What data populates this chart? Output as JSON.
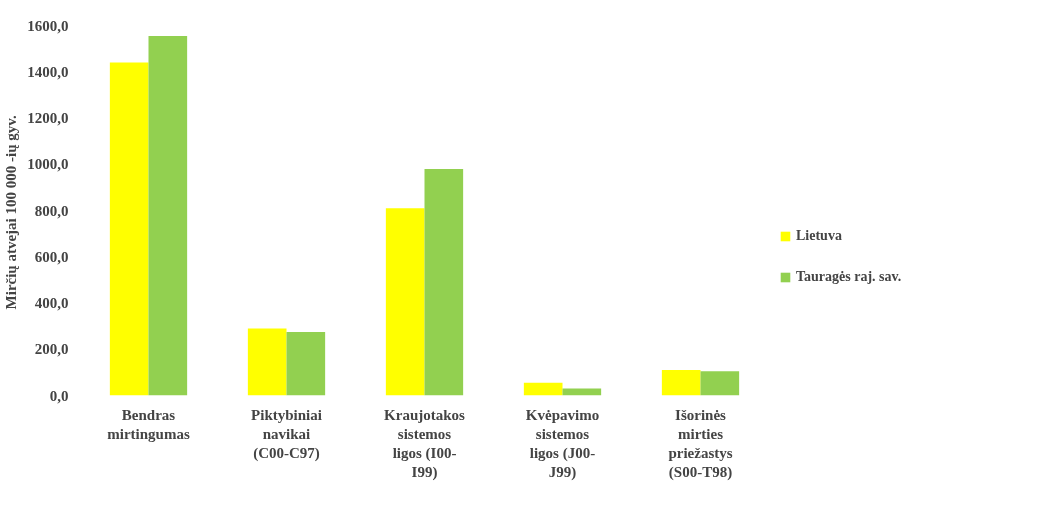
{
  "chart_data": {
    "type": "bar",
    "ylabel": "Mirčių  atvejai 100 000 -ių gyv.",
    "categories": [
      "Bendras\nmirtingumas",
      "Piktybiniai\nnavikai\n(C00-C97)",
      "Kraujotakos\nsistemos\nligos (I00-\nI99)",
      "Kvėpavimo\nsistemos\nligos (J00-\nJ99)",
      "Išorinės\nmirties\npriežastys\n(S00-T98)"
    ],
    "series": [
      {
        "name": "Lietuva",
        "color": "#ffff00",
        "values": [
          1440,
          290,
          810,
          55,
          110
        ]
      },
      {
        "name": "Tauragės raj. sav.",
        "color": "#92d050",
        "values": [
          1555,
          275,
          980,
          30,
          105
        ]
      }
    ],
    "ylim": [
      0,
      1600
    ],
    "yticks": [
      {
        "value": 0,
        "label": "0,0"
      },
      {
        "value": 200,
        "label": "200,0"
      },
      {
        "value": 400,
        "label": "400,0"
      },
      {
        "value": 600,
        "label": "600,0"
      },
      {
        "value": 800,
        "label": "800,0"
      },
      {
        "value": 1000,
        "label": "1000,0"
      },
      {
        "value": 1200,
        "label": "1200,0"
      },
      {
        "value": 1400,
        "label": "1400,0"
      },
      {
        "value": 1600,
        "label": "1600,0"
      }
    ],
    "grid": false,
    "legend": "right"
  }
}
